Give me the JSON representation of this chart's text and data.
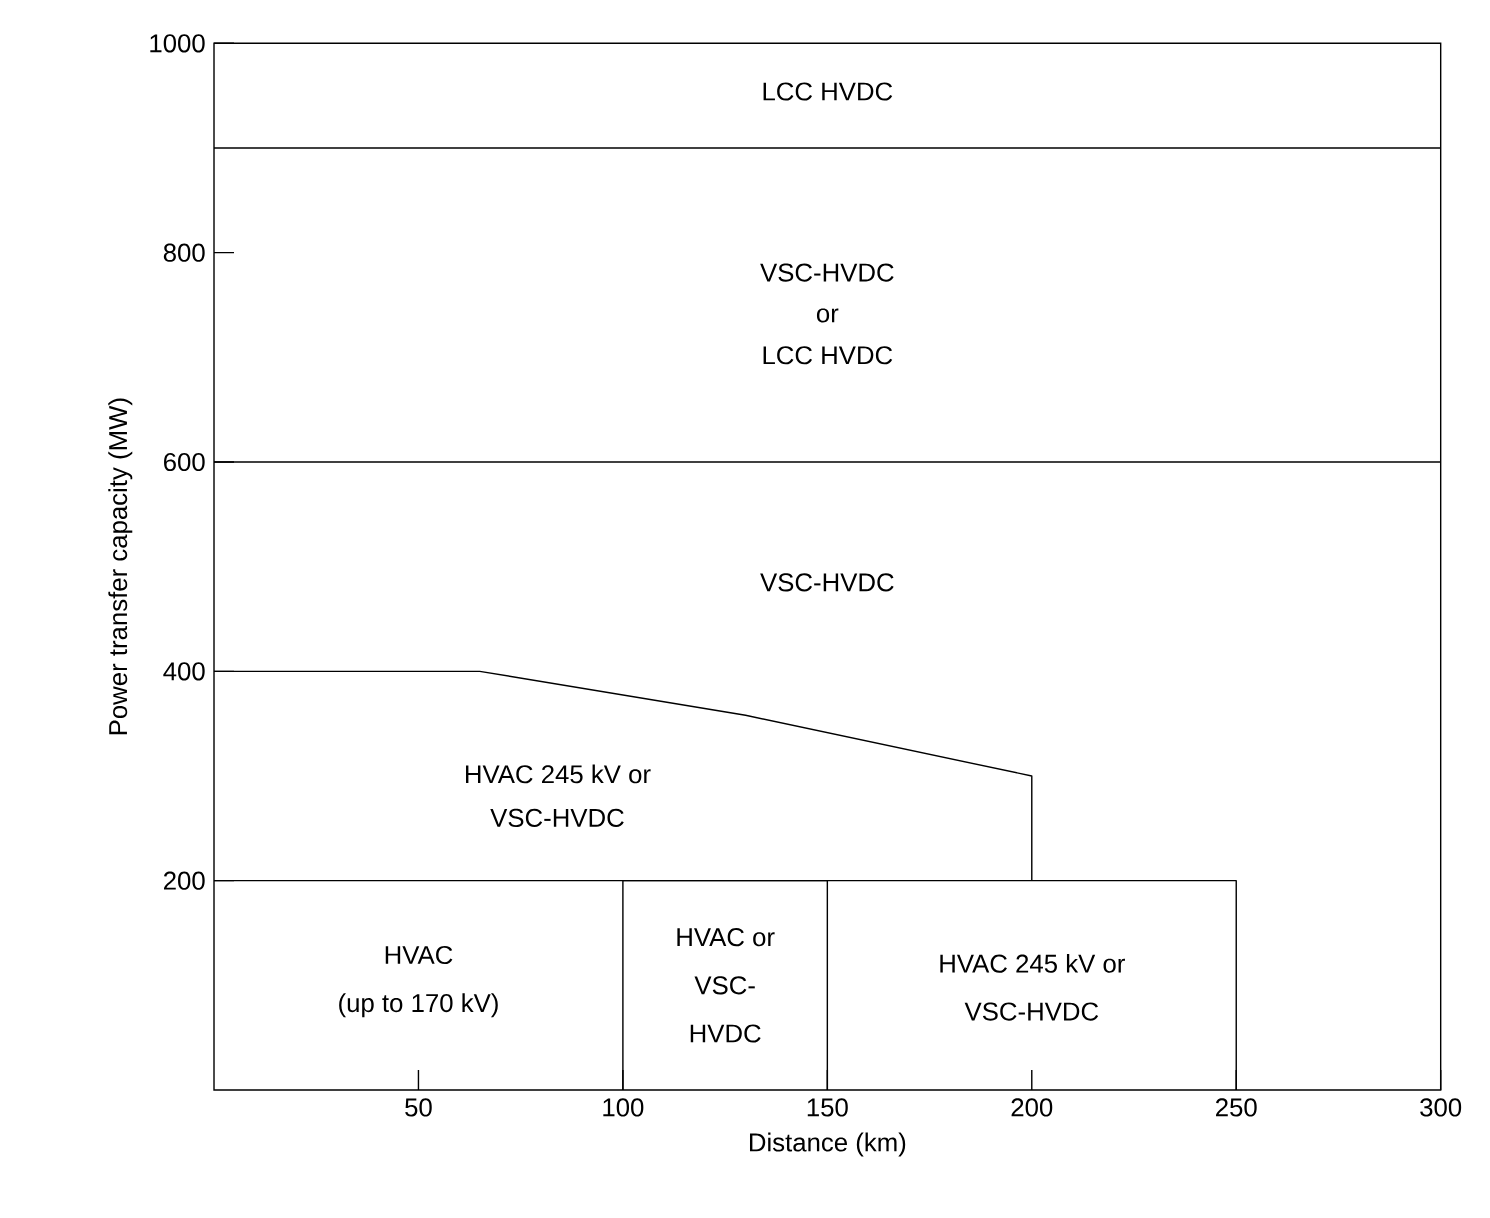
{
  "chart_data": {
    "type": "line",
    "xlabel": "Distance (km)",
    "ylabel": "Power transfer capacity (MW)",
    "xlim": [
      0,
      300
    ],
    "xticks": [
      50,
      100,
      150,
      200,
      250,
      300
    ],
    "ylim": [
      0,
      1000
    ],
    "yticks": [
      200,
      400,
      600,
      800,
      1000
    ],
    "marker": "none",
    "line_style": "solid",
    "series": [
      {
        "color": "#000000",
        "x": [
          0,
          300
        ],
        "values": [
          900,
          900
        ]
      },
      {
        "color": "#000000",
        "x": [
          0,
          300
        ],
        "values": [
          600,
          600
        ]
      },
      {
        "color": "#000000",
        "x": [
          0,
          65,
          130,
          200,
          200
        ],
        "values": [
          400,
          400,
          358,
          300,
          200
        ]
      },
      {
        "color": "#000000",
        "x": [
          0,
          250,
          250
        ],
        "values": [
          200,
          200,
          0
        ]
      },
      {
        "color": "#000000",
        "x": [
          100,
          100,
          150,
          150
        ],
        "values": [
          0,
          200,
          200,
          0
        ]
      }
    ],
    "annotations": [
      "LCC HVDC",
      "VSC-HVDC",
      "or",
      "LCC HVDC",
      "VSC-HVDC",
      "HVAC 245 kV or",
      "VSC-HVDC",
      "HVAC",
      "(up to 170 kV)",
      "HVAC or",
      "VSC-",
      "HVDC",
      "HVAC 245 kV or",
      "VSC-HVDC"
    ]
  }
}
